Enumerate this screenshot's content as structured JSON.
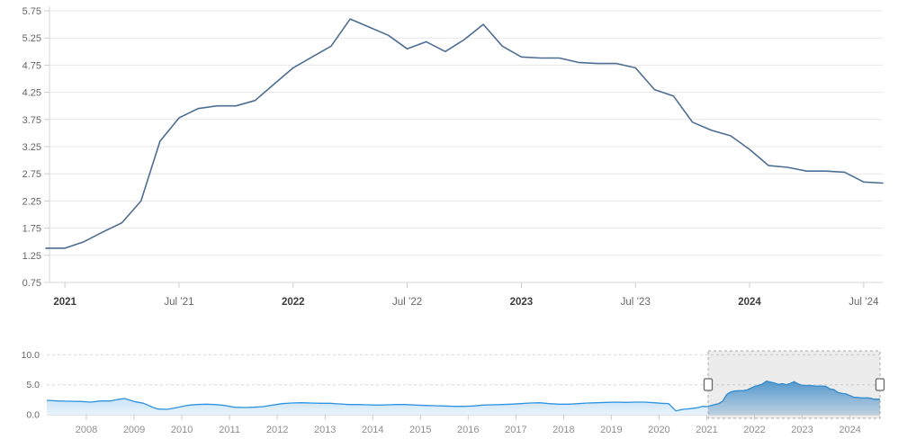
{
  "chart_data": [
    {
      "type": "line",
      "name": "main-series",
      "title": "",
      "xlabel": "",
      "ylabel": "",
      "interval": "monthly",
      "start_month": "2020-12",
      "end_month": "2024-08",
      "values": [
        1.38,
        1.38,
        1.5,
        1.68,
        1.85,
        2.25,
        3.35,
        3.78,
        3.95,
        4.0,
        4.0,
        4.1,
        4.4,
        4.7,
        4.9,
        5.1,
        5.6,
        5.45,
        5.3,
        5.05,
        5.18,
        5.0,
        5.22,
        5.5,
        5.1,
        4.9,
        4.88,
        4.88,
        4.8,
        4.78,
        4.78,
        4.7,
        4.3,
        4.18,
        3.7,
        3.55,
        3.45,
        3.2,
        2.9,
        2.87,
        2.8,
        2.8,
        2.78,
        2.6,
        2.58
      ],
      "ylim": [
        0.75,
        5.75
      ],
      "ytick_labels": [
        "5.75",
        "5.25",
        "4.75",
        "4.25",
        "3.75",
        "3.25",
        "2.75",
        "2.25",
        "1.75",
        "1.25",
        "0.75"
      ],
      "yticks": [
        5.75,
        5.25,
        4.75,
        4.25,
        3.75,
        3.25,
        2.75,
        2.25,
        1.75,
        1.25,
        0.75
      ],
      "xticks": [
        {
          "label": "2021",
          "bold": true,
          "month_index": 1
        },
        {
          "label": "Jul ’21",
          "bold": false,
          "month_index": 7
        },
        {
          "label": "2022",
          "bold": true,
          "month_index": 13
        },
        {
          "label": "Jul ’22",
          "bold": false,
          "month_index": 19
        },
        {
          "label": "2023",
          "bold": true,
          "month_index": 25
        },
        {
          "label": "Jul ’23",
          "bold": false,
          "month_index": 31
        },
        {
          "label": "2024",
          "bold": true,
          "month_index": 37
        },
        {
          "label": "Jul ’24",
          "bold": false,
          "month_index": 43
        }
      ],
      "grid": "horizontal",
      "legend": "none"
    },
    {
      "type": "area",
      "name": "navigator-series",
      "ylim": [
        0,
        10
      ],
      "ytick_labels": [
        "10.0",
        "5.0",
        "0.0"
      ],
      "yticks": [
        10.0,
        5.0,
        0.0
      ],
      "year_labels": [
        "2008",
        "2009",
        "2010",
        "2011",
        "2012",
        "2013",
        "2014",
        "2015",
        "2016",
        "2017",
        "2018",
        "2019",
        "2020",
        "2021",
        "2022",
        "2023",
        "2024"
      ],
      "x_start": 2007.17,
      "x_end": 2024.63,
      "history_points": [
        [
          2007.17,
          2.4
        ],
        [
          2007.4,
          2.3
        ],
        [
          2007.6,
          2.25
        ],
        [
          2007.9,
          2.2
        ],
        [
          2008.1,
          2.1
        ],
        [
          2008.3,
          2.3
        ],
        [
          2008.5,
          2.3
        ],
        [
          2008.7,
          2.6
        ],
        [
          2008.8,
          2.7
        ],
        [
          2009.0,
          2.2
        ],
        [
          2009.2,
          1.9
        ],
        [
          2009.4,
          1.2
        ],
        [
          2009.5,
          0.95
        ],
        [
          2009.7,
          0.9
        ],
        [
          2009.9,
          1.2
        ],
        [
          2010.1,
          1.55
        ],
        [
          2010.3,
          1.7
        ],
        [
          2010.5,
          1.75
        ],
        [
          2010.7,
          1.7
        ],
        [
          2010.9,
          1.55
        ],
        [
          2011.1,
          1.25
        ],
        [
          2011.3,
          1.2
        ],
        [
          2011.5,
          1.25
        ],
        [
          2011.7,
          1.35
        ],
        [
          2011.9,
          1.6
        ],
        [
          2012.1,
          1.85
        ],
        [
          2012.3,
          1.95
        ],
        [
          2012.5,
          2.0
        ],
        [
          2012.7,
          1.95
        ],
        [
          2012.9,
          1.9
        ],
        [
          2013.1,
          1.9
        ],
        [
          2013.3,
          1.8
        ],
        [
          2013.5,
          1.7
        ],
        [
          2013.7,
          1.7
        ],
        [
          2013.9,
          1.65
        ],
        [
          2014.1,
          1.6
        ],
        [
          2014.3,
          1.65
        ],
        [
          2014.5,
          1.7
        ],
        [
          2014.7,
          1.7
        ],
        [
          2014.9,
          1.6
        ],
        [
          2015.1,
          1.55
        ],
        [
          2015.3,
          1.5
        ],
        [
          2015.5,
          1.45
        ],
        [
          2015.7,
          1.4
        ],
        [
          2015.9,
          1.4
        ],
        [
          2016.1,
          1.45
        ],
        [
          2016.3,
          1.6
        ],
        [
          2016.5,
          1.65
        ],
        [
          2016.7,
          1.7
        ],
        [
          2016.9,
          1.75
        ],
        [
          2017.1,
          1.85
        ],
        [
          2017.3,
          1.95
        ],
        [
          2017.5,
          2.0
        ],
        [
          2017.7,
          1.85
        ],
        [
          2017.9,
          1.75
        ],
        [
          2018.1,
          1.75
        ],
        [
          2018.3,
          1.85
        ],
        [
          2018.5,
          1.95
        ],
        [
          2018.7,
          2.0
        ],
        [
          2018.9,
          2.05
        ],
        [
          2019.1,
          2.1
        ],
        [
          2019.3,
          2.05
        ],
        [
          2019.5,
          2.1
        ],
        [
          2019.7,
          2.1
        ],
        [
          2019.9,
          2.0
        ],
        [
          2020.05,
          1.9
        ],
        [
          2020.2,
          1.85
        ],
        [
          2020.35,
          0.65
        ],
        [
          2020.5,
          0.9
        ],
        [
          2020.65,
          1.0
        ],
        [
          2020.8,
          1.15
        ]
      ],
      "main_series_appended_from": 2020.917,
      "selection": {
        "start_x": 787,
        "end_x": 978,
        "handles": 2
      }
    }
  ],
  "colors": {
    "main_line": "#4d6d92",
    "grid_line": "#e7e7e7",
    "axis_line": "#d4d4d4",
    "tick_mark": "#cccccc",
    "label_text": "#666666",
    "label_text_bold": "#3d3d3d",
    "nav_year_text": "#8f8f8f",
    "nav_line": "#2f93e0",
    "nav_fill_top": "#9ccbef",
    "nav_fill_bottom": "#e5f2fc",
    "nav_sel_fill_top": "#4f9dda",
    "nav_sel_fill_bottom": "#c6def2",
    "nav_grid_dashed": "#d9d9d9",
    "nav_baseline": "#c8c8c8",
    "selection_mask": "rgba(100,100,100,0.12)",
    "selection_border": "#a8a8a8",
    "handle_fill": "#ffffff",
    "handle_stroke": "#696969",
    "background": "#ffffff"
  }
}
